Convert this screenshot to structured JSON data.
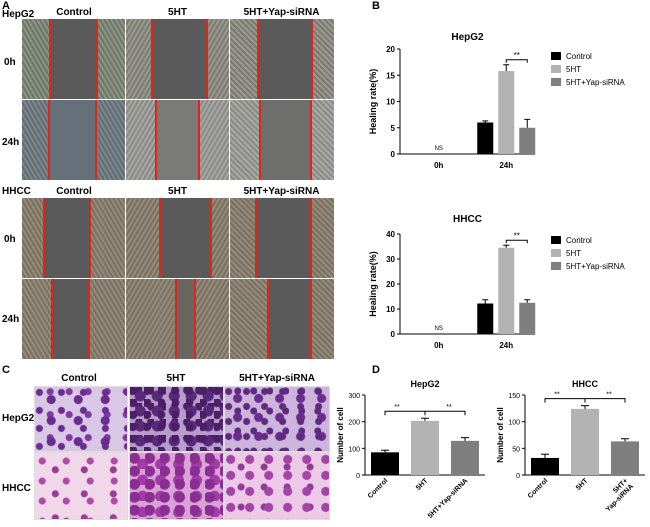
{
  "panels": {
    "a": "A",
    "b": "B",
    "c": "C",
    "d": "D"
  },
  "wound": {
    "hepg2_label": "HepG2",
    "hhcc_label": "HHCC",
    "columns": [
      "Control",
      "5HT",
      "5HT+Yap-siRNA"
    ],
    "rows": [
      "0h",
      "24h"
    ]
  },
  "transwell": {
    "columns": [
      "Control",
      "5HT",
      "5HT+Yap-siRNA"
    ],
    "rows": [
      "HepG2",
      "HHCC"
    ]
  },
  "colors": {
    "control": "#000000",
    "fiveht": "#b3b3b3",
    "yap": "#7f7f7f",
    "gap": "#5a5a5a",
    "redline": "#e2231a",
    "stain": "#6b2c8f"
  },
  "chart_data": [
    {
      "id": "healing-hepg2",
      "type": "bar",
      "title": "HepG2",
      "ylabel": "Healing rate(%)",
      "categories": [
        "0h",
        "24h"
      ],
      "ylim": [
        0,
        20
      ],
      "yticks": [
        0,
        5,
        10,
        15,
        20
      ],
      "series": [
        {
          "name": "Control",
          "values": [
            0,
            6.0
          ],
          "errors": [
            0,
            0.3
          ]
        },
        {
          "name": "5HT",
          "values": [
            0,
            15.8
          ],
          "errors": [
            0,
            1.2
          ]
        },
        {
          "name": "5HT+Yap-siRNA",
          "values": [
            0,
            5.0
          ],
          "errors": [
            0,
            1.6
          ]
        }
      ],
      "annotations": {
        "ns": "NS",
        "sig": "**"
      },
      "legend": "right"
    },
    {
      "id": "healing-hhcc",
      "type": "bar",
      "title": "HHCC",
      "ylabel": "Healing rate(%)",
      "categories": [
        "0h",
        "24h"
      ],
      "ylim": [
        0,
        40
      ],
      "yticks": [
        0,
        10,
        20,
        30,
        40
      ],
      "series": [
        {
          "name": "Control",
          "values": [
            0,
            12.2
          ],
          "errors": [
            0,
            1.5
          ]
        },
        {
          "name": "5HT",
          "values": [
            0,
            34.5
          ],
          "errors": [
            0,
            1.0
          ]
        },
        {
          "name": "5HT+Yap-siRNA",
          "values": [
            0,
            12.5
          ],
          "errors": [
            0,
            1.2
          ]
        }
      ],
      "annotations": {
        "ns": "NS",
        "sig": "**"
      },
      "legend": "right"
    },
    {
      "id": "cells-hepg2",
      "type": "bar",
      "title": "HepG2",
      "ylabel": "Number of cell",
      "categories": [
        "Control",
        "5HT",
        "5HT+Yap-siRNA"
      ],
      "values": [
        85,
        203,
        128
      ],
      "errors": [
        8,
        10,
        12
      ],
      "ylim": [
        0,
        300
      ],
      "yticks": [
        0,
        100,
        200,
        300
      ],
      "annotations": {
        "sig": "**"
      }
    },
    {
      "id": "cells-hhcc",
      "type": "bar",
      "title": "HHCC",
      "ylabel": "Number of cell",
      "categories": [
        "Control",
        "5HT",
        "5HT+ Yap-siRNA"
      ],
      "values": [
        32,
        124,
        63
      ],
      "errors": [
        7,
        6,
        5
      ],
      "ylim": [
        0,
        150
      ],
      "yticks": [
        0,
        50,
        100,
        150
      ],
      "annotations": {
        "sig": "**"
      }
    }
  ]
}
